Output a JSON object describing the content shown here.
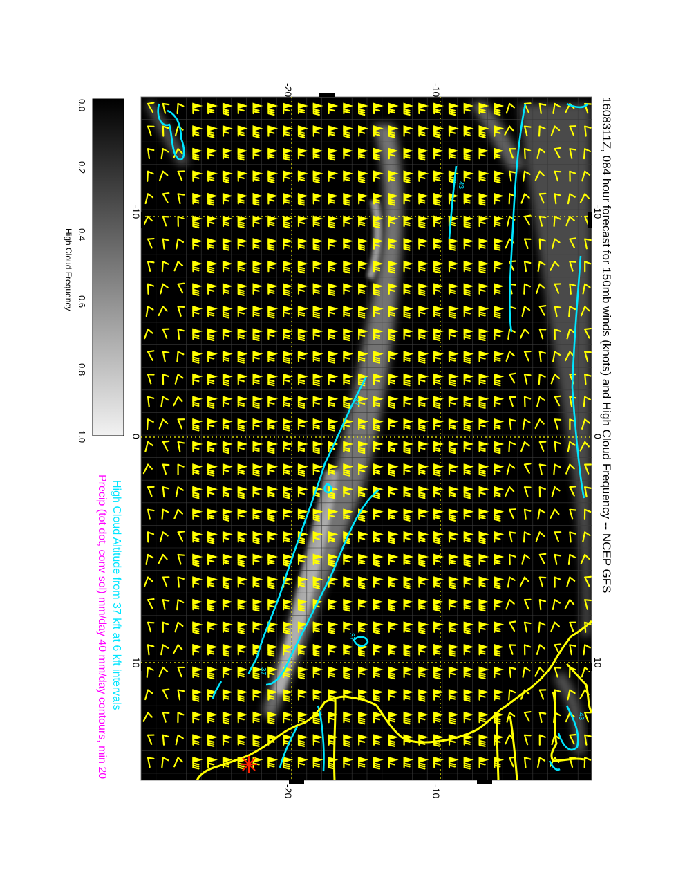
{
  "title": "1608311Z, 084 hour forecast for 150mb winds (knots) and High Cloud Frequency -- NCEP GFS",
  "subtitle_cyan": "High Cloud Altitude from 37 kft at 6 kft intervals",
  "subtitle_magenta": "Precip (tot dot, conv sol) mm/day 40 mm/day contours, min 20",
  "colorbar": {
    "label": "High Cloud Frequency",
    "ticks": [
      "0.0",
      "0.2",
      "0.4",
      "0.6",
      "0.8",
      "1.0"
    ]
  },
  "map_axes": {
    "lon_ticks_outer": [
      "-20",
      "-10"
    ],
    "lon_ticks_inner": [
      "-20",
      "-10"
    ],
    "lat_ticks_left": [
      "-10",
      "0",
      "10"
    ],
    "lat_ticks_right": [
      "-10",
      "0",
      "10"
    ]
  },
  "contour_labels": [
    "43",
    "37",
    "37",
    "37",
    "43"
  ],
  "colors": {
    "background": "#000000",
    "wind_barbs": "#ffff00",
    "coastline": "#ffff00",
    "cloud_altitude_contours": "#00e5ff",
    "subtitle_cyan": "#00e5ff",
    "subtitle_magenta": "#ff00ff",
    "marker": "#ff2200"
  }
}
